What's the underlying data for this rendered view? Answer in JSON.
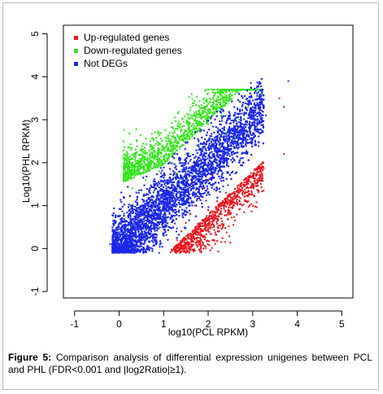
{
  "chart_data": {
    "type": "scatter",
    "xlabel": "log10(PCL RPKM)",
    "ylabel": "Log10(PHL RPKM)",
    "xlim": [
      -1.25,
      5.25
    ],
    "ylim": [
      -1.15,
      5.2
    ],
    "x_ticks": [
      "-1",
      "0",
      "1",
      "2",
      "3",
      "4",
      "5"
    ],
    "y_ticks": [
      "-1",
      "0",
      "1",
      "2",
      "3",
      "4",
      "5"
    ],
    "legend_position": "top-left",
    "grid": false,
    "series": [
      {
        "name": "Up-regulated genes",
        "color": "#e8141b",
        "points": [
          [
            1.3,
            0.2
          ],
          [
            1.4,
            0.4
          ],
          [
            1.5,
            0.6
          ],
          [
            1.6,
            0.8
          ],
          [
            1.7,
            1.0
          ],
          [
            1.8,
            1.2
          ],
          [
            1.9,
            1.4
          ],
          [
            2.0,
            1.6
          ],
          [
            2.1,
            1.7
          ],
          [
            1.4,
            0.05
          ],
          [
            1.6,
            0.3
          ],
          [
            1.8,
            0.5
          ],
          [
            2.0,
            0.9
          ],
          [
            2.2,
            1.1
          ],
          [
            2.4,
            1.3
          ],
          [
            2.3,
            0.7
          ],
          [
            2.5,
            1.2
          ],
          [
            2.7,
            1.4
          ],
          [
            2.9,
            1.1
          ],
          [
            3.1,
            1.6
          ],
          [
            3.7,
            2.2
          ],
          [
            3.7,
            3.3
          ],
          [
            3.6,
            3.5
          ],
          [
            1.5,
            0.1
          ],
          [
            1.7,
            -0.05
          ],
          [
            2.1,
            0.2
          ],
          [
            1.9,
            0.0
          ]
        ]
      },
      {
        "name": "Down-regulated genes",
        "color": "#36e41f",
        "points": [
          [
            0.3,
            1.4
          ],
          [
            0.6,
            1.6
          ],
          [
            0.9,
            1.8
          ],
          [
            1.2,
            2.0
          ],
          [
            1.5,
            2.2
          ],
          [
            1.8,
            2.4
          ],
          [
            2.1,
            2.5
          ],
          [
            2.4,
            2.7
          ],
          [
            2.7,
            3.0
          ],
          [
            0.8,
            2.2
          ],
          [
            1.1,
            2.5
          ],
          [
            1.4,
            2.6
          ],
          [
            1.7,
            2.8
          ],
          [
            2.0,
            2.9
          ],
          [
            2.3,
            3.1
          ],
          [
            2.9,
            3.3
          ],
          [
            3.2,
            3.6
          ],
          [
            0.2,
            1.7
          ],
          [
            0.5,
            1.9
          ],
          [
            2.6,
            2.6
          ],
          [
            1.3,
            1.75
          ],
          [
            0.7,
            2.5
          ],
          [
            1.0,
            2.3
          ]
        ]
      },
      {
        "name": "Not DEGs",
        "color": "#1b29e6",
        "points": [
          [
            0,
            0
          ],
          [
            0.5,
            0.5
          ],
          [
            1,
            1
          ],
          [
            1.5,
            1.5
          ],
          [
            2,
            2
          ],
          [
            2.5,
            2.4
          ],
          [
            3,
            2.9
          ],
          [
            3.3,
            3.1
          ],
          [
            -0.2,
            0.1
          ],
          [
            0.3,
            0.9
          ],
          [
            0.8,
            0.2
          ],
          [
            1.2,
            1.6
          ],
          [
            1.7,
            1.2
          ],
          [
            2.2,
            2.2
          ],
          [
            0.1,
            1.2
          ],
          [
            0.9,
            -0.1
          ],
          [
            3.8,
            3.9
          ]
        ]
      }
    ]
  },
  "caption": {
    "label": "Figure 5:",
    "text": " Comparison analysis of differential expression unigenes between PCL and PHL (FDR<0.001 and |log2Ratio|≥1)."
  }
}
